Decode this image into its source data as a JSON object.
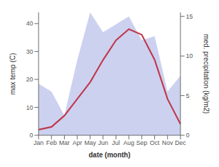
{
  "chart_data": {
    "type": "line",
    "xlabel": "date (month)",
    "ylabel": "max temp (C)",
    "y2label": "med. precipitation (kg/m2)",
    "categories": [
      "Jan",
      "Feb",
      "Mar",
      "Apr",
      "May",
      "Jun",
      "Jul",
      "Aug",
      "Sep",
      "Oct",
      "Nov",
      "Dec"
    ],
    "series": [
      {
        "type": "area",
        "axis": "y2",
        "color": "#b0b8e8",
        "values": [
          6.5,
          5.5,
          2.5,
          9.5,
          15.5,
          13.0,
          14.0,
          15.0,
          12.0,
          12.5,
          5.5,
          7.5
        ]
      },
      {
        "type": "line",
        "color": "#c0384a",
        "values": [
          2,
          3,
          7,
          13,
          19,
          27,
          34,
          38,
          36,
          27,
          13,
          4
        ]
      }
    ],
    "ylim": [
      0,
      44
    ],
    "yticks": [
      0,
      10,
      20,
      30,
      40
    ],
    "y2lim": [
      0,
      15.5
    ],
    "y2ticks": [
      0,
      5,
      10,
      15
    ],
    "grid": false
  }
}
